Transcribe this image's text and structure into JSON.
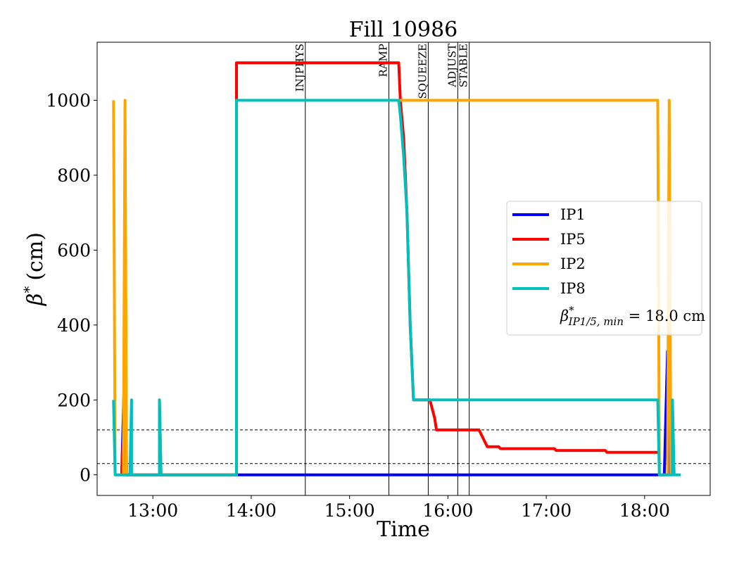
{
  "chart_data": {
    "type": "line",
    "title": "Fill 10986",
    "xlabel": "Time",
    "ylabel_symbol": "β",
    "ylabel_sup": "*",
    "ylabel_unit": "(cm)",
    "xlim": [
      "12:26",
      "18:40"
    ],
    "ylim": [
      -55,
      1155
    ],
    "x_ticks": [
      "13:00",
      "14:00",
      "15:00",
      "16:00",
      "17:00",
      "18:00"
    ],
    "y_ticks": [
      0,
      200,
      400,
      600,
      800,
      1000
    ],
    "grid": false,
    "legend_position": "center-right",
    "reference_lines": [
      30,
      120
    ],
    "phases": [
      {
        "label": "INJPHYS",
        "time": "14:33"
      },
      {
        "label": "RAMP",
        "time": "15:24"
      },
      {
        "label": "SQUEEZE",
        "time": "15:48"
      },
      {
        "label": "ADJUST",
        "time": "16:06"
      },
      {
        "label": "STABLE",
        "time": "16:13"
      }
    ],
    "legend_note": {
      "symbol": "β",
      "sup": "*",
      "sub": "IP1/5, min",
      "value_text": " = 18.0 cm"
    },
    "series": [
      {
        "name": "IP1",
        "color": "#0000ff",
        "points": [
          [
            "12:41",
            0
          ],
          [
            "12:43",
            330
          ],
          [
            "12:44",
            0
          ],
          [
            "18:12",
            0
          ],
          [
            "18:14",
            330
          ],
          [
            "18:15",
            0
          ]
        ]
      },
      {
        "name": "IP5",
        "color": "#ff0000",
        "points": [
          [
            "12:41",
            0
          ],
          [
            "12:43",
            200
          ],
          [
            "12:44",
            0
          ],
          [
            "13:04",
            0
          ],
          [
            "13:04",
            200
          ],
          [
            "13:05",
            0
          ],
          [
            "13:51",
            0
          ],
          [
            "13:51",
            1100
          ],
          [
            "15:30",
            1100
          ],
          [
            "15:31",
            1000
          ],
          [
            "15:33",
            900
          ],
          [
            "15:35",
            700
          ],
          [
            "15:37",
            400
          ],
          [
            "15:39",
            200
          ],
          [
            "15:49",
            200
          ],
          [
            "15:52",
            150
          ],
          [
            "15:53",
            120
          ],
          [
            "16:19",
            120
          ],
          [
            "16:24",
            75
          ],
          [
            "16:31",
            75
          ],
          [
            "16:32",
            70
          ],
          [
            "17:05",
            70
          ],
          [
            "17:06",
            65
          ],
          [
            "17:36",
            65
          ],
          [
            "17:37",
            60
          ],
          [
            "18:08",
            60
          ],
          [
            "18:09",
            55
          ]
        ]
      },
      {
        "name": "IP2",
        "color": "#ffa500",
        "points": [
          [
            "12:36",
            1000
          ],
          [
            "12:37",
            0
          ],
          [
            "12:42",
            0
          ],
          [
            "12:43",
            1000
          ],
          [
            "12:44",
            0
          ],
          [
            "13:04",
            0
          ],
          [
            "13:04",
            200
          ],
          [
            "13:05",
            0
          ],
          [
            "13:51",
            0
          ],
          [
            "13:51",
            1000
          ],
          [
            "18:08",
            1000
          ],
          [
            "18:09",
            0
          ],
          [
            "18:14",
            0
          ],
          [
            "18:15",
            1000
          ],
          [
            "18:16",
            0
          ]
        ]
      },
      {
        "name": "IP8",
        "color": "#00bfbf",
        "points": [
          [
            "12:36",
            200
          ],
          [
            "12:37",
            0
          ],
          [
            "12:46",
            0
          ],
          [
            "12:47",
            200
          ],
          [
            "12:47",
            0
          ],
          [
            "13:04",
            0
          ],
          [
            "13:04",
            200
          ],
          [
            "13:05",
            0
          ],
          [
            "13:51",
            0
          ],
          [
            "13:51",
            1000
          ],
          [
            "15:30",
            1000
          ],
          [
            "15:31",
            960
          ],
          [
            "15:33",
            850
          ],
          [
            "15:35",
            700
          ],
          [
            "15:37",
            400
          ],
          [
            "15:39",
            200
          ],
          [
            "18:08",
            200
          ],
          [
            "18:09",
            0
          ],
          [
            "18:17",
            0
          ],
          [
            "18:17",
            200
          ],
          [
            "18:18",
            0
          ],
          [
            "18:22",
            0
          ]
        ]
      }
    ]
  }
}
